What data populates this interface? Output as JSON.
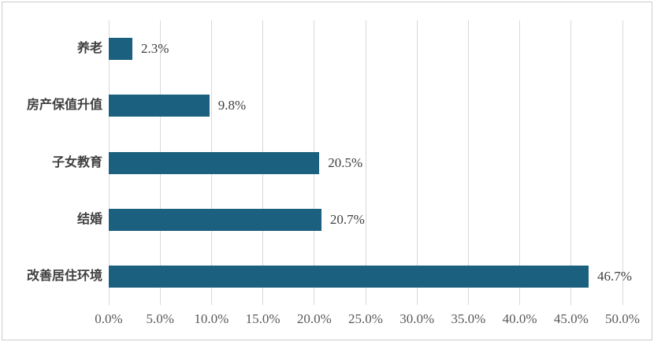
{
  "chart_data": {
    "type": "bar",
    "orientation": "horizontal",
    "title": "",
    "categories": [
      "养老",
      "房产保值升值",
      "子女教育",
      "结婚",
      "改善居住环境"
    ],
    "values": [
      2.3,
      9.8,
      20.5,
      20.7,
      46.7
    ],
    "value_labels": [
      "2.3%",
      "9.8%",
      "20.5%",
      "20.7%",
      "46.7%"
    ],
    "xlim": [
      0,
      50
    ],
    "x_tick_labels": [
      "0.0%",
      "5.0%",
      "10.0%",
      "15.0%",
      "20.0%",
      "25.0%",
      "30.0%",
      "35.0%",
      "40.0%",
      "45.0%",
      "50.0%"
    ],
    "grid": "vertical-only",
    "legend": "none",
    "colors": {
      "bar": "#1c6080",
      "gridline": "#d9d9d9",
      "frame_border": "#cccccc",
      "category_label": "#3f3f3f",
      "value_label": "#404040",
      "tick_label": "#595959",
      "background": "#ffffff"
    }
  }
}
